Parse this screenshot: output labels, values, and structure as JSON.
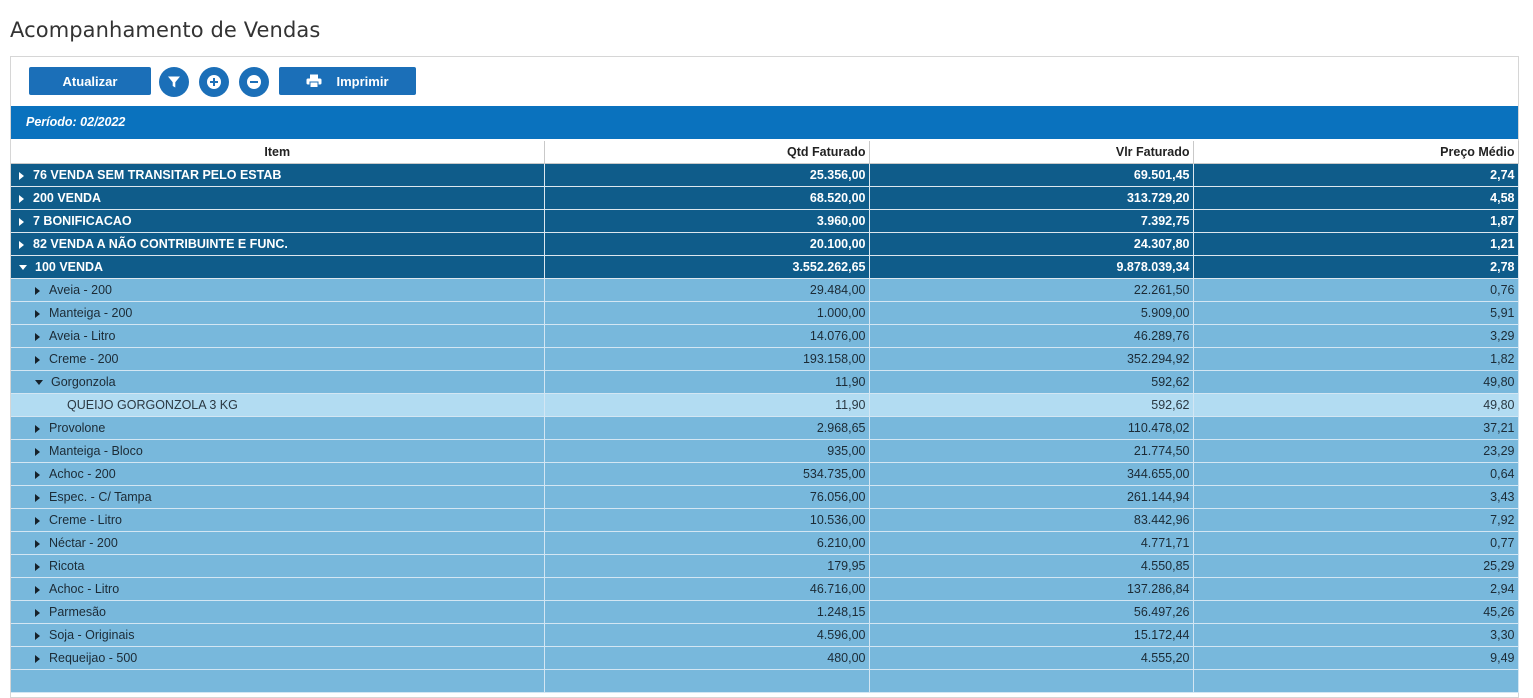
{
  "page": {
    "title": "Acompanhamento de Vendas"
  },
  "toolbar": {
    "refresh_label": "Atualizar",
    "print_label": "Imprimir",
    "filter_icon": "filter-icon",
    "expand_icon": "plus-circle-icon",
    "collapse_icon": "minus-circle-icon",
    "print_icon": "printer-icon"
  },
  "period": {
    "label": "Período: 02/2022"
  },
  "table": {
    "headers": [
      "Item",
      "Qtd Faturado",
      "Vlr Faturado",
      "Preço Médio"
    ],
    "rows": [
      {
        "level": 0,
        "expanded": false,
        "label": "76 VENDA SEM TRANSITAR PELO ESTAB",
        "qtd": "25.356,00",
        "vlr": "69.501,45",
        "preco": "2,74"
      },
      {
        "level": 0,
        "expanded": false,
        "label": "200 VENDA",
        "qtd": "68.520,00",
        "vlr": "313.729,20",
        "preco": "4,58"
      },
      {
        "level": 0,
        "expanded": false,
        "label": "7 BONIFICACAO",
        "qtd": "3.960,00",
        "vlr": "7.392,75",
        "preco": "1,87"
      },
      {
        "level": 0,
        "expanded": false,
        "label": "82 VENDA A NÃO CONTRIBUINTE E FUNC.",
        "qtd": "20.100,00",
        "vlr": "24.307,80",
        "preco": "1,21"
      },
      {
        "level": 0,
        "expanded": true,
        "label": "100 VENDA",
        "qtd": "3.552.262,65",
        "vlr": "9.878.039,34",
        "preco": "2,78"
      },
      {
        "level": 1,
        "expanded": false,
        "label": "Aveia - 200",
        "qtd": "29.484,00",
        "vlr": "22.261,50",
        "preco": "0,76"
      },
      {
        "level": 1,
        "expanded": false,
        "label": "Manteiga - 200",
        "qtd": "1.000,00",
        "vlr": "5.909,00",
        "preco": "5,91"
      },
      {
        "level": 1,
        "expanded": false,
        "label": "Aveia - Litro",
        "qtd": "14.076,00",
        "vlr": "46.289,76",
        "preco": "3,29"
      },
      {
        "level": 1,
        "expanded": false,
        "label": "Creme - 200",
        "qtd": "193.158,00",
        "vlr": "352.294,92",
        "preco": "1,82"
      },
      {
        "level": 1,
        "expanded": true,
        "label": "Gorgonzola",
        "qtd": "11,90",
        "vlr": "592,62",
        "preco": "49,80"
      },
      {
        "level": 2,
        "expanded": null,
        "label": "QUEIJO GORGONZOLA 3 KG",
        "qtd": "11,90",
        "vlr": "592,62",
        "preco": "49,80"
      },
      {
        "level": 1,
        "expanded": false,
        "label": "Provolone",
        "qtd": "2.968,65",
        "vlr": "110.478,02",
        "preco": "37,21"
      },
      {
        "level": 1,
        "expanded": false,
        "label": "Manteiga - Bloco",
        "qtd": "935,00",
        "vlr": "21.774,50",
        "preco": "23,29"
      },
      {
        "level": 1,
        "expanded": false,
        "label": "Achoc - 200",
        "qtd": "534.735,00",
        "vlr": "344.655,00",
        "preco": "0,64"
      },
      {
        "level": 1,
        "expanded": false,
        "label": "Espec. - C/ Tampa",
        "qtd": "76.056,00",
        "vlr": "261.144,94",
        "preco": "3,43"
      },
      {
        "level": 1,
        "expanded": false,
        "label": "Creme - Litro",
        "qtd": "10.536,00",
        "vlr": "83.442,96",
        "preco": "7,92"
      },
      {
        "level": 1,
        "expanded": false,
        "label": "Néctar - 200",
        "qtd": "6.210,00",
        "vlr": "4.771,71",
        "preco": "0,77"
      },
      {
        "level": 1,
        "expanded": false,
        "label": "Ricota",
        "qtd": "179,95",
        "vlr": "4.550,85",
        "preco": "25,29"
      },
      {
        "level": 1,
        "expanded": false,
        "label": "Achoc - Litro",
        "qtd": "46.716,00",
        "vlr": "137.286,84",
        "preco": "2,94"
      },
      {
        "level": 1,
        "expanded": false,
        "label": "Parmesão",
        "qtd": "1.248,15",
        "vlr": "56.497,26",
        "preco": "45,26"
      },
      {
        "level": 1,
        "expanded": false,
        "label": "Soja - Originais",
        "qtd": "4.596,00",
        "vlr": "15.172,44",
        "preco": "3,30"
      },
      {
        "level": 1,
        "expanded": false,
        "label": "Requeijao - 500",
        "qtd": "480,00",
        "vlr": "4.555,20",
        "preco": "9,49"
      },
      {
        "level": 1,
        "expanded": false,
        "label": "",
        "qtd": "",
        "vlr": "",
        "preco": ""
      }
    ]
  },
  "colors": {
    "primary": "#1b6fb8",
    "period_bar": "#0a72be",
    "group_row": "#0f5c8a",
    "sub_row": "#78b8dc",
    "leaf_row": "#b2dcf2"
  }
}
